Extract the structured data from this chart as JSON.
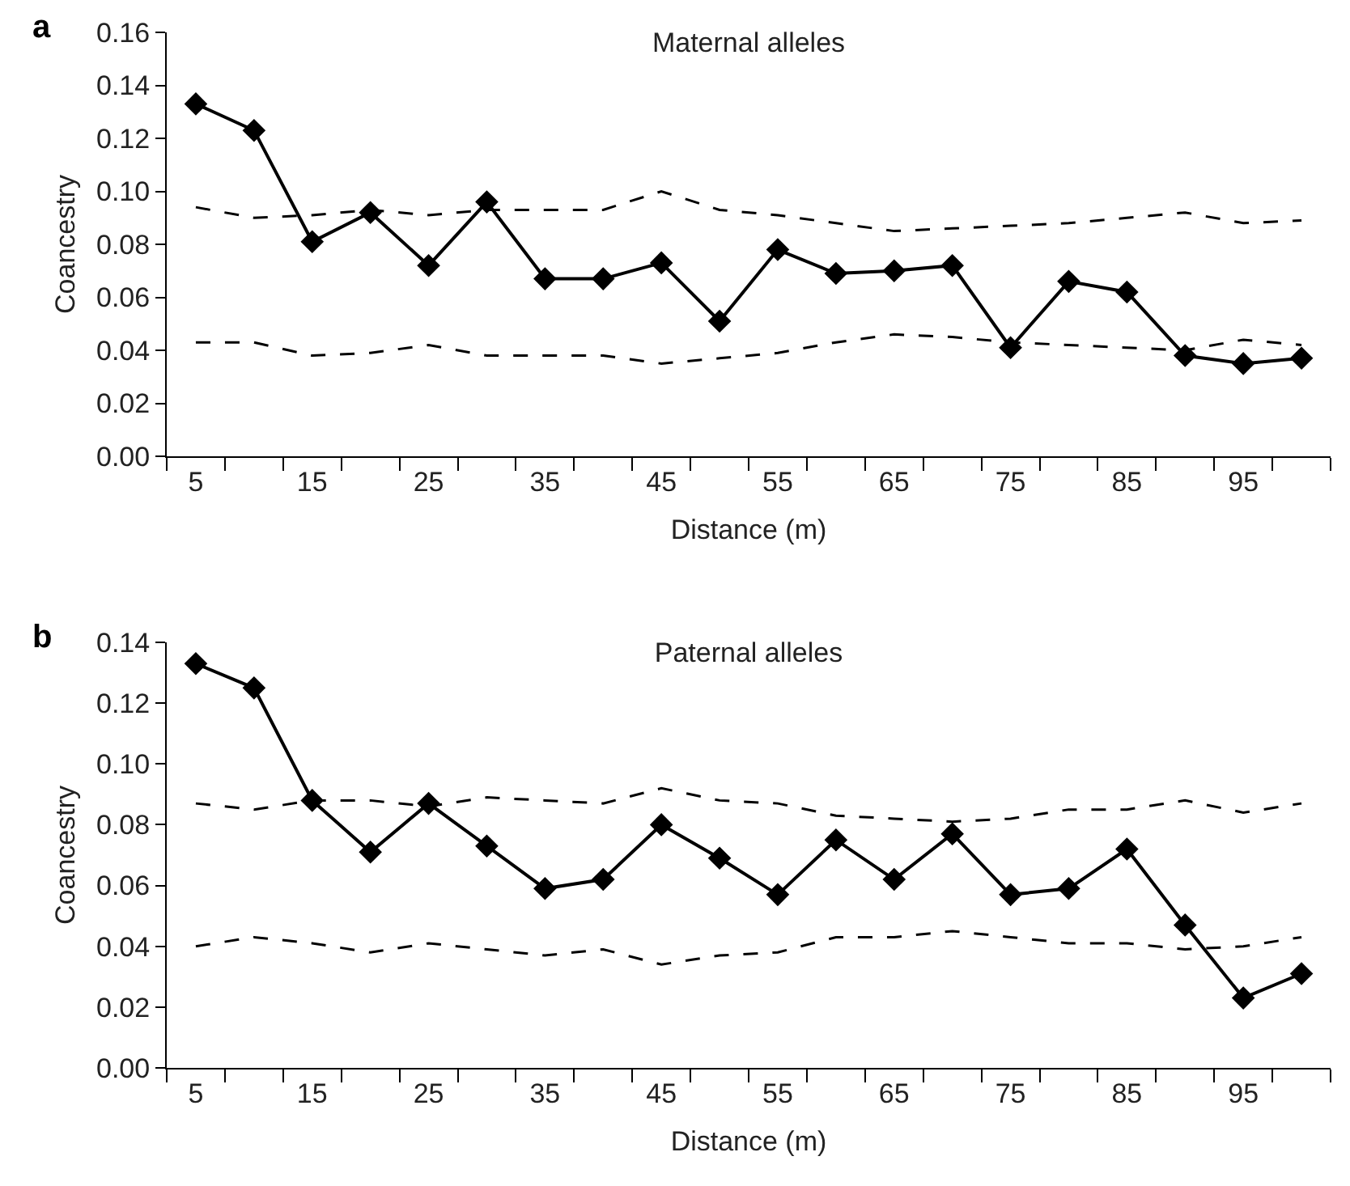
{
  "chart_data": [
    {
      "type": "line",
      "title": "Maternal alleles",
      "xlabel": "Distance (m)",
      "ylabel": "Coancestry",
      "annotations": [
        "a"
      ],
      "categories": [
        "5",
        null,
        "15",
        null,
        "25",
        null,
        "35",
        null,
        "45",
        null,
        "55",
        null,
        "65",
        null,
        "75",
        null,
        "85",
        null,
        "95",
        null
      ],
      "ylim": [
        0,
        0.16
      ],
      "yticks": [
        {
          "value": 0,
          "label": "0.00"
        },
        {
          "value": 0.02,
          "label": "0.02"
        },
        {
          "value": 0.04,
          "label": "0.04"
        },
        {
          "value": 0.06,
          "label": "0.06"
        },
        {
          "value": 0.08,
          "label": "0.08"
        },
        {
          "value": 0.1,
          "label": "0.10"
        },
        {
          "value": 0.12,
          "label": "0.12"
        },
        {
          "value": 0.14,
          "label": "0.14"
        },
        {
          "value": 0.16,
          "label": "0.16"
        }
      ],
      "series": [
        {
          "color": "#000000",
          "marker": "diamond",
          "line_style": "solid",
          "values": [
            0.133,
            0.123,
            0.081,
            0.092,
            0.072,
            0.096,
            0.067,
            0.067,
            0.073,
            0.051,
            0.078,
            0.069,
            0.07,
            0.072,
            0.041,
            0.066,
            0.062,
            0.038,
            0.035,
            0.037
          ]
        },
        {
          "color": "#000000",
          "marker": "none",
          "line_style": "dashed",
          "values": [
            0.094,
            0.09,
            0.091,
            0.093,
            0.091,
            0.093,
            0.093,
            0.093,
            0.1,
            0.093,
            0.091,
            0.088,
            0.085,
            0.086,
            0.087,
            0.088,
            0.09,
            0.092,
            0.088,
            0.089
          ]
        },
        {
          "color": "#000000",
          "marker": "none",
          "line_style": "dashed",
          "values": [
            0.043,
            0.043,
            0.038,
            0.039,
            0.042,
            0.038,
            0.038,
            0.038,
            0.035,
            0.037,
            0.039,
            0.043,
            0.046,
            0.045,
            0.043,
            0.042,
            0.041,
            0.04,
            0.044,
            0.042
          ]
        }
      ]
    },
    {
      "type": "line",
      "title": "Paternal alleles",
      "xlabel": "Distance (m)",
      "ylabel": "Coancestry",
      "annotations": [
        "b"
      ],
      "categories": [
        "5",
        null,
        "15",
        null,
        "25",
        null,
        "35",
        null,
        "45",
        null,
        "55",
        null,
        "65",
        null,
        "75",
        null,
        "85",
        null,
        "95",
        null
      ],
      "ylim": [
        0,
        0.14
      ],
      "yticks": [
        {
          "value": 0,
          "label": "0.00"
        },
        {
          "value": 0.02,
          "label": "0.02"
        },
        {
          "value": 0.04,
          "label": "0.04"
        },
        {
          "value": 0.06,
          "label": "0.06"
        },
        {
          "value": 0.08,
          "label": "0.08"
        },
        {
          "value": 0.1,
          "label": "0.10"
        },
        {
          "value": 0.12,
          "label": "0.12"
        },
        {
          "value": 0.14,
          "label": "0.14"
        }
      ],
      "series": [
        {
          "color": "#000000",
          "marker": "diamond",
          "line_style": "solid",
          "values": [
            0.133,
            0.125,
            0.088,
            0.071,
            0.087,
            0.073,
            0.059,
            0.062,
            0.08,
            0.069,
            0.057,
            0.075,
            0.062,
            0.077,
            0.057,
            0.059,
            0.072,
            0.047,
            0.023,
            0.031
          ]
        },
        {
          "color": "#000000",
          "marker": "none",
          "line_style": "dashed",
          "values": [
            0.087,
            0.085,
            0.088,
            0.088,
            0.086,
            0.089,
            0.088,
            0.087,
            0.092,
            0.088,
            0.087,
            0.083,
            0.082,
            0.081,
            0.082,
            0.085,
            0.085,
            0.088,
            0.084,
            0.087
          ]
        },
        {
          "color": "#000000",
          "marker": "none",
          "line_style": "dashed",
          "values": [
            0.04,
            0.043,
            0.041,
            0.038,
            0.041,
            0.039,
            0.037,
            0.039,
            0.034,
            0.037,
            0.038,
            0.043,
            0.043,
            0.045,
            0.043,
            0.041,
            0.041,
            0.039,
            0.04,
            0.043
          ]
        }
      ]
    }
  ]
}
